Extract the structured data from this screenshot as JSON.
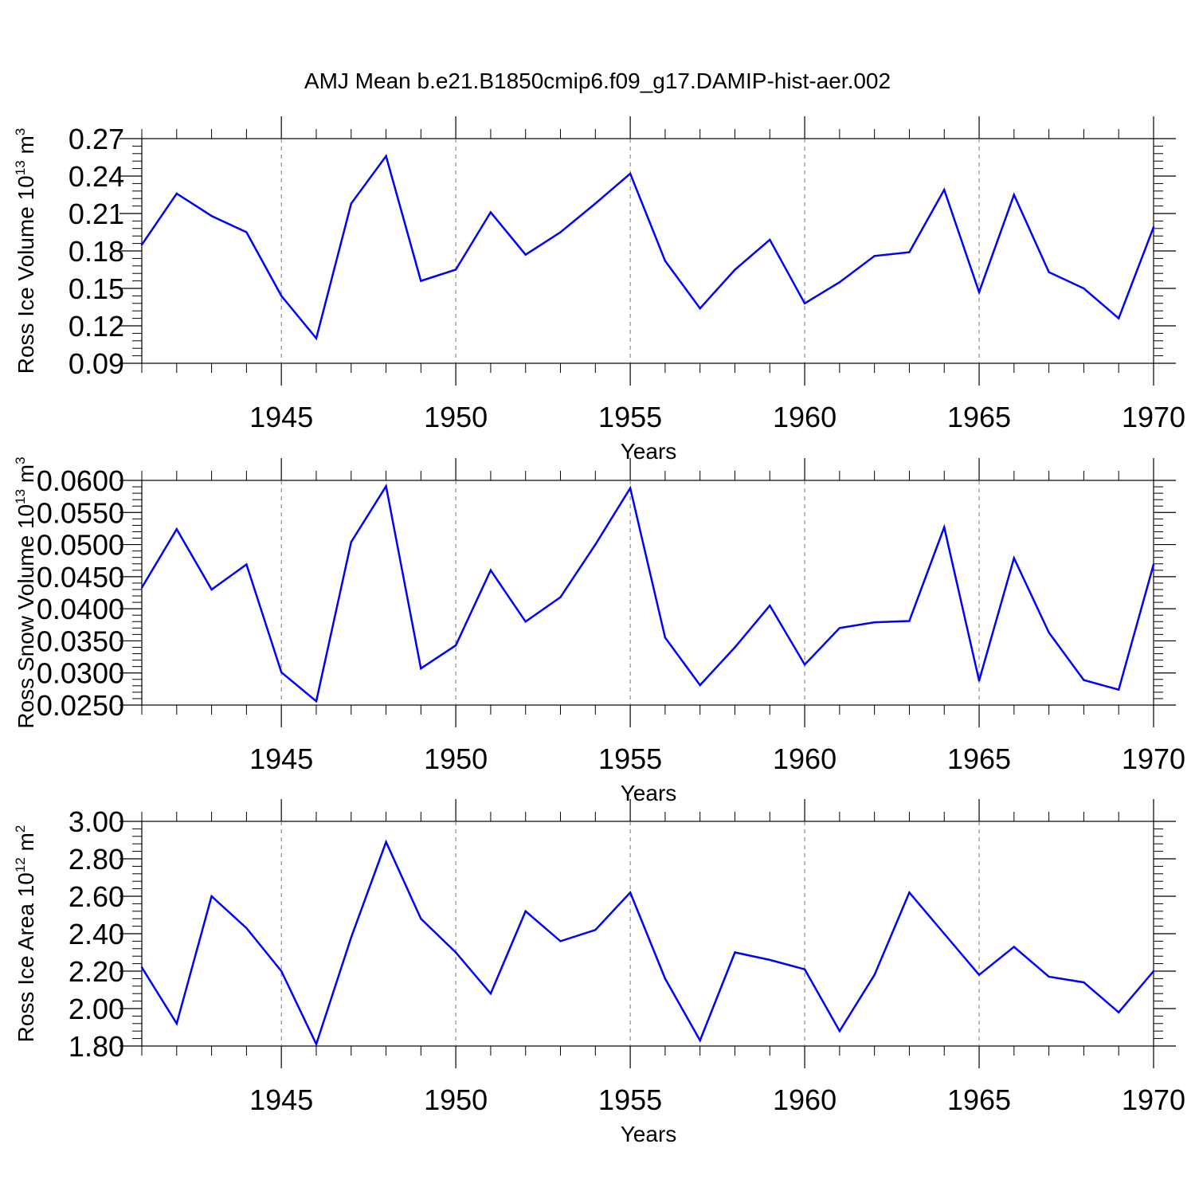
{
  "figure": {
    "title": "AMJ Mean b.e21.B1850cmip6.f09_g17.DAMIP-hist-aer.002"
  },
  "colors": {
    "series": "#0000ff",
    "axis": "#000000",
    "grid": "#777777"
  },
  "chart_data": [
    {
      "type": "line",
      "ylabel": "Ross Ice Volume 10",
      "ylabel_sup": "13",
      "ylabel_unit": " m",
      "ylabel_unit_sup": "3",
      "xlabel": "Years",
      "xlim": [
        1941,
        1970
      ],
      "ylim": [
        0.09,
        0.27
      ],
      "yticks": [
        "0.09",
        "0.12",
        "0.15",
        "0.18",
        "0.21",
        "0.24",
        "0.27"
      ],
      "xticks": [
        "1945",
        "1950",
        "1955",
        "1960",
        "1965",
        "1970"
      ],
      "grid": "vertical dashed at major x ticks",
      "x": [
        1941,
        1942,
        1943,
        1944,
        1945,
        1946,
        1947,
        1948,
        1949,
        1950,
        1951,
        1952,
        1953,
        1954,
        1955,
        1956,
        1957,
        1958,
        1959,
        1960,
        1961,
        1962,
        1963,
        1964,
        1965,
        1966,
        1967,
        1968,
        1969,
        1970
      ],
      "values": [
        0.185,
        0.226,
        0.208,
        0.195,
        0.144,
        0.11,
        0.218,
        0.256,
        0.156,
        0.165,
        0.211,
        0.177,
        0.195,
        0.218,
        0.242,
        0.172,
        0.134,
        0.165,
        0.189,
        0.138,
        0.155,
        0.176,
        0.179,
        0.229,
        0.147,
        0.225,
        0.163,
        0.15,
        0.126,
        0.199
      ]
    },
    {
      "type": "line",
      "ylabel": "Ross Snow Volume 10",
      "ylabel_sup": "13",
      "ylabel_unit": " m",
      "ylabel_unit_sup": "3",
      "xlabel": "Years",
      "xlim": [
        1941,
        1970
      ],
      "ylim": [
        0.025,
        0.06
      ],
      "yticks": [
        "0.0250",
        "0.0300",
        "0.0350",
        "0.0400",
        "0.0450",
        "0.0500",
        "0.0550",
        "0.0600"
      ],
      "xticks": [
        "1945",
        "1950",
        "1955",
        "1960",
        "1965",
        "1970"
      ],
      "grid": "vertical dashed at major x ticks",
      "x": [
        1941,
        1942,
        1943,
        1944,
        1945,
        1946,
        1947,
        1948,
        1949,
        1950,
        1951,
        1952,
        1953,
        1954,
        1955,
        1956,
        1957,
        1958,
        1959,
        1960,
        1961,
        1962,
        1963,
        1964,
        1965,
        1966,
        1967,
        1968,
        1969,
        1970
      ],
      "values": [
        0.0433,
        0.0524,
        0.043,
        0.0469,
        0.0301,
        0.0256,
        0.0504,
        0.0591,
        0.0307,
        0.0343,
        0.046,
        0.038,
        0.0418,
        0.05,
        0.0588,
        0.0355,
        0.0281,
        0.034,
        0.0405,
        0.0313,
        0.037,
        0.0379,
        0.0381,
        0.0527,
        0.0288,
        0.0479,
        0.0363,
        0.0289,
        0.0274,
        0.0469
      ]
    },
    {
      "type": "line",
      "ylabel": "Ross Ice Area 10",
      "ylabel_sup": "12",
      "ylabel_unit": " m",
      "ylabel_unit_sup": "2",
      "xlabel": "Years",
      "xlim": [
        1941,
        1970
      ],
      "ylim": [
        1.8,
        3.0
      ],
      "yticks": [
        "1.80",
        "2.00",
        "2.20",
        "2.40",
        "2.60",
        "2.80",
        "3.00"
      ],
      "xticks": [
        "1945",
        "1950",
        "1955",
        "1960",
        "1965",
        "1970"
      ],
      "grid": "vertical dashed at major x ticks",
      "x": [
        1941,
        1942,
        1943,
        1944,
        1945,
        1946,
        1947,
        1948,
        1949,
        1950,
        1951,
        1952,
        1953,
        1954,
        1955,
        1956,
        1957,
        1958,
        1959,
        1960,
        1961,
        1962,
        1963,
        1964,
        1965,
        1966,
        1967,
        1968,
        1969,
        1970
      ],
      "values": [
        2.22,
        1.92,
        2.6,
        2.43,
        2.2,
        1.81,
        2.38,
        2.89,
        2.48,
        2.3,
        2.08,
        2.52,
        2.36,
        2.42,
        2.62,
        2.16,
        1.83,
        2.3,
        2.26,
        2.21,
        1.88,
        2.18,
        2.62,
        2.4,
        2.18,
        2.33,
        2.17,
        2.14,
        1.98,
        2.2
      ]
    }
  ]
}
